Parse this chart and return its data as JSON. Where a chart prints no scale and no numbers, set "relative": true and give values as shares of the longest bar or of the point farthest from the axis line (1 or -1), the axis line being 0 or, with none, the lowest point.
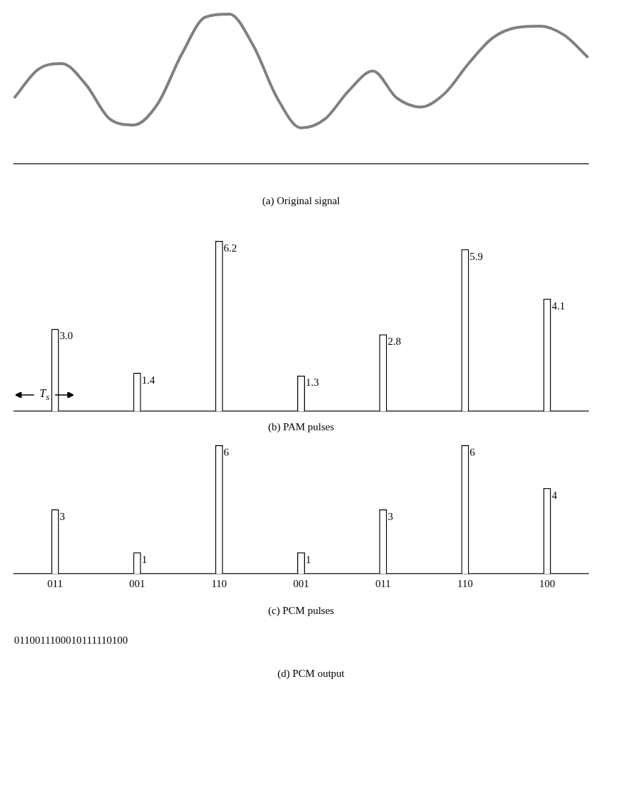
{
  "chart_data": [
    {
      "type": "line",
      "title": "(a) Original signal",
      "relative": true,
      "marker": "none",
      "categories": [
        null,
        null,
        null,
        null,
        null,
        null,
        null,
        null,
        null,
        null,
        null,
        null,
        null,
        null,
        null,
        null,
        null,
        null,
        null,
        null,
        null,
        null,
        null,
        null,
        null
      ],
      "series": [
        {
          "color": "#808080",
          "values": [
            0.44,
            0.63,
            0.67,
            0.53,
            0.3,
            0.26,
            0.4,
            0.73,
            0.98,
            1.0,
            0.79,
            0.44,
            0.24,
            0.3,
            0.49,
            0.62,
            0.44,
            0.38,
            0.47,
            0.67,
            0.84,
            0.91,
            0.92,
            0.86,
            0.71
          ]
        }
      ]
    },
    {
      "type": "bar",
      "title": "(b) PAM pulses",
      "tick_labels": false,
      "categories": [
        null,
        null,
        null,
        null,
        null,
        null,
        null
      ],
      "values": [
        3.0,
        1.4,
        6.2,
        1.3,
        2.8,
        5.9,
        4.1
      ],
      "color": "#ffffff",
      "value_labels": [
        "3.0",
        "1.4",
        "6.2",
        "1.3",
        "2.8",
        "5.9",
        "4.1"
      ],
      "annotations": [
        "T$_{s}$"
      ]
    },
    {
      "type": "bar",
      "title": "(c) PCM pulses",
      "tick_labels": "x",
      "data_labels": true,
      "categories": [
        "011",
        "001",
        "110",
        "001",
        "011",
        "110",
        "100"
      ],
      "series": [
        {
          "color": "#ffffff",
          "values": [
            3,
            1,
            6,
            1,
            3,
            6,
            4
          ]
        }
      ]
    },
    {
      "type": "other",
      "title": "(d) PCM output",
      "annotations": [
        "0110011100010111110100"
      ]
    }
  ]
}
